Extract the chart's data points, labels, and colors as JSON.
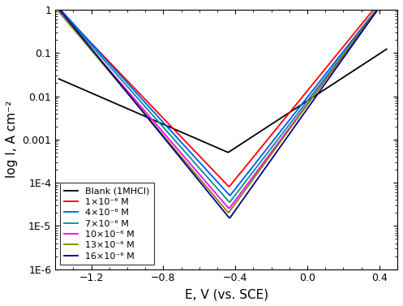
{
  "title": "",
  "xlabel": "E, V (vs. SCE)",
  "ylabel": "log I, A cm⁻²",
  "xlim": [
    -1.4,
    0.5
  ],
  "ylim_log": [
    1e-06,
    1.0
  ],
  "curves": [
    {
      "label": "Blank (1MHCl)",
      "color": "#000000",
      "Ecorr": -0.44,
      "Icorr": 0.0005,
      "ba": 0.16,
      "bc": 0.24,
      "Emin": -1.38,
      "Emax": 0.44
    },
    {
      "label": "1×10⁻⁶ M",
      "color": "#ff0000",
      "Ecorr": -0.435,
      "Icorr": 8e-05,
      "ba": 0.085,
      "bc": 0.1,
      "Emin": -1.38,
      "Emax": 0.44
    },
    {
      "label": "4×10⁻⁶ M",
      "color": "#0055ff",
      "Ecorr": -0.43,
      "Icorr": 5e-05,
      "ba": 0.082,
      "bc": 0.095,
      "Emin": -1.38,
      "Emax": 0.44
    },
    {
      "label": "7×10⁻⁶ M",
      "color": "#009090",
      "Ecorr": -0.432,
      "Icorr": 3.5e-05,
      "ba": 0.08,
      "bc": 0.092,
      "Emin": -1.38,
      "Emax": 0.44
    },
    {
      "label": "10×10⁻⁶ M",
      "color": "#ff00ff",
      "Ecorr": -0.435,
      "Icorr": 2.5e-05,
      "ba": 0.078,
      "bc": 0.09,
      "Emin": -1.38,
      "Emax": 0.44
    },
    {
      "label": "13×10⁻⁶ M",
      "color": "#808000",
      "Ecorr": -0.438,
      "Icorr": 2e-05,
      "ba": 0.076,
      "bc": 0.088,
      "Emin": -1.38,
      "Emax": 0.44
    },
    {
      "label": "16×10⁻⁶ M",
      "color": "#000080",
      "Ecorr": -0.432,
      "Icorr": 1.5e-05,
      "ba": 0.074,
      "bc": 0.085,
      "Emin": -1.38,
      "Emax": 0.44
    }
  ],
  "legend_loc": "lower left",
  "tick_label_fontsize": 9,
  "axis_label_fontsize": 11
}
